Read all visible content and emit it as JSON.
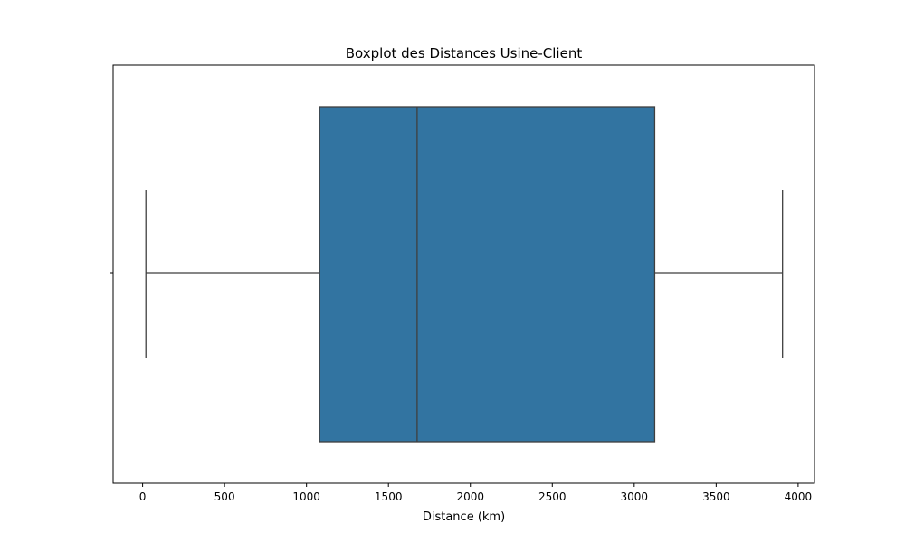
{
  "chart_data": {
    "type": "boxplot",
    "title": "Boxplot des Distances Usine-Client",
    "xlabel": "Distance (km)",
    "ylabel": "",
    "xlim": [
      -180,
      4100
    ],
    "xticks": [
      0,
      500,
      1000,
      1500,
      2000,
      2500,
      3000,
      3500,
      4000
    ],
    "xtick_labels": [
      "0",
      "500",
      "1000",
      "1500",
      "2000",
      "2500",
      "3000",
      "3500",
      "4000"
    ],
    "orientation": "horizontal",
    "grid": false,
    "legend": "none",
    "box": {
      "min": 20,
      "q1": 1080,
      "median": 1675,
      "q3": 3125,
      "max": 3905
    },
    "colors": {
      "box_fill": "#3274a1",
      "line": "#3f3f3f",
      "axes": "#000000"
    }
  }
}
